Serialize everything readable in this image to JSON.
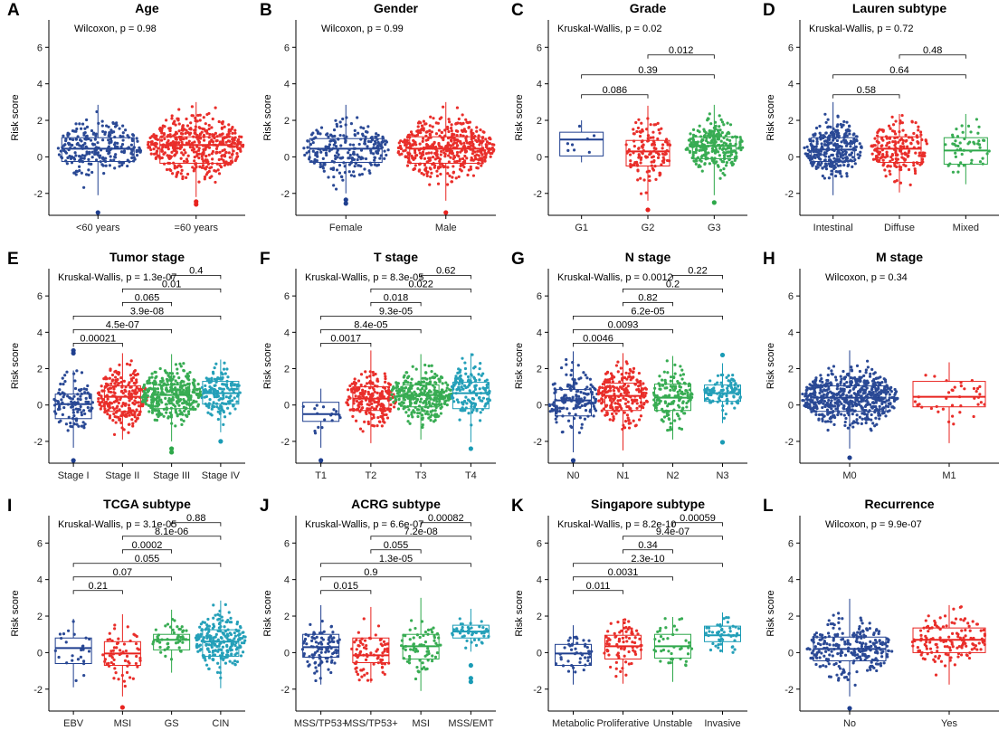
{
  "chart_data": [
    {
      "letter": "A",
      "type": "box",
      "title": "Age",
      "stat": "Wilcoxon, p = 0.98",
      "ylabel": "Risk score",
      "ylim": [
        -3.2,
        7.5
      ],
      "yticks": [
        -2,
        0,
        2,
        4,
        6
      ],
      "groups": [
        {
          "label": "<60 years",
          "color": "#1f3f8f",
          "q1": -0.25,
          "median": 0.45,
          "q3": 1.05,
          "whisker_low": -2.1,
          "whisker_high": 2.85,
          "outliers": [
            -3.05
          ],
          "n": 260
        },
        {
          "label": "=60 years",
          "color": "#e8231f",
          "q1": -0.35,
          "median": 0.65,
          "q3": 1.1,
          "whisker_low": -2.2,
          "whisker_high": 3.0,
          "outliers": [
            -2.45,
            -2.6
          ],
          "n": 460
        }
      ],
      "comparisons": []
    },
    {
      "letter": "B",
      "type": "box",
      "title": "Gender",
      "stat": "Wilcoxon, p = 0.99",
      "ylabel": "Risk score",
      "ylim": [
        -3.2,
        7.5
      ],
      "yticks": [
        -2,
        0,
        2,
        4,
        6
      ],
      "groups": [
        {
          "label": "Female",
          "color": "#1f3f8f",
          "q1": -0.3,
          "median": 0.45,
          "q3": 1.0,
          "whisker_low": -2.0,
          "whisker_high": 2.85,
          "outliers": [
            -2.35,
            -2.55
          ],
          "n": 230
        },
        {
          "label": "Male",
          "color": "#e8231f",
          "q1": -0.35,
          "median": 0.45,
          "q3": 1.1,
          "whisker_low": -2.4,
          "whisker_high": 3.0,
          "outliers": [
            -3.05
          ],
          "n": 470
        }
      ],
      "comparisons": []
    },
    {
      "letter": "C",
      "type": "box",
      "title": "Grade",
      "stat": "Kruskal-Wallis, p = 0.02",
      "ylabel": "Risk score",
      "ylim": [
        -3.2,
        7.5
      ],
      "yticks": [
        -2,
        0,
        2,
        4,
        6
      ],
      "groups": [
        {
          "label": "G1",
          "color": "#1f3f8f",
          "q1": 0.05,
          "median": 0.95,
          "q3": 1.35,
          "whisker_low": -0.3,
          "whisker_high": 2.0,
          "outliers": [],
          "n": 8
        },
        {
          "label": "G2",
          "color": "#e8231f",
          "q1": -0.5,
          "median": 0.3,
          "q3": 0.9,
          "whisker_low": -2.4,
          "whisker_high": 2.8,
          "outliers": [
            -2.9
          ],
          "n": 130
        },
        {
          "label": "G3",
          "color": "#2ea84a",
          "q1": -0.1,
          "median": 0.6,
          "q3": 1.1,
          "whisker_low": -2.1,
          "whisker_high": 2.85,
          "outliers": [
            -2.5
          ],
          "n": 260
        }
      ],
      "comparisons": [
        {
          "from": 0,
          "to": 1,
          "p": "0.086"
        },
        {
          "from": 0,
          "to": 2,
          "p": "0.39"
        },
        {
          "from": 1,
          "to": 2,
          "p": "0.012"
        }
      ]
    },
    {
      "letter": "D",
      "type": "box",
      "title": "Lauren subtype",
      "stat": "Kruskal-Wallis, p = 0.72",
      "ylabel": "Risk score",
      "ylim": [
        -3.2,
        7.5
      ],
      "yticks": [
        -2,
        0,
        2,
        4,
        6
      ],
      "groups": [
        {
          "label": "Intestinal",
          "color": "#1f3f8f",
          "q1": -0.25,
          "median": 0.4,
          "q3": 1.05,
          "whisker_low": -2.1,
          "whisker_high": 3.0,
          "outliers": [],
          "n": 300
        },
        {
          "label": "Diffuse",
          "color": "#e8231f",
          "q1": -0.3,
          "median": 0.45,
          "q3": 1.1,
          "whisker_low": -1.95,
          "whisker_high": 2.35,
          "outliers": [],
          "n": 200
        },
        {
          "label": "Mixed",
          "color": "#2ea84a",
          "q1": -0.4,
          "median": 0.35,
          "q3": 1.05,
          "whisker_low": -1.5,
          "whisker_high": 2.35,
          "outliers": [],
          "n": 50
        }
      ],
      "comparisons": [
        {
          "from": 0,
          "to": 1,
          "p": "0.58"
        },
        {
          "from": 0,
          "to": 2,
          "p": "0.64"
        },
        {
          "from": 1,
          "to": 2,
          "p": "0.48"
        }
      ]
    },
    {
      "letter": "E",
      "type": "box",
      "title": "Tumor stage",
      "stat": "Kruskal-Wallis, p = 1.3e-07",
      "ylabel": "Risk score",
      "ylim": [
        -3.2,
        7.5
      ],
      "yticks": [
        -2,
        0,
        2,
        4,
        6
      ],
      "groups": [
        {
          "label": "Stage I",
          "color": "#1f3f8f",
          "q1": -0.75,
          "median": 0.05,
          "q3": 0.6,
          "whisker_low": -2.35,
          "whisker_high": 1.9,
          "outliers": [
            3.0,
            2.85,
            -3.05
          ],
          "n": 110
        },
        {
          "label": "Stage II",
          "color": "#e8231f",
          "q1": -0.35,
          "median": 0.45,
          "q3": 1.05,
          "whisker_low": -1.9,
          "whisker_high": 2.85,
          "outliers": [],
          "n": 240
        },
        {
          "label": "Stage III",
          "color": "#2ea84a",
          "q1": -0.2,
          "median": 0.55,
          "q3": 1.1,
          "whisker_low": -2.0,
          "whisker_high": 2.8,
          "outliers": [
            -2.4,
            -2.6
          ],
          "n": 340
        },
        {
          "label": "Stage IV",
          "color": "#1a9bb5",
          "q1": 0.05,
          "median": 0.65,
          "q3": 1.3,
          "whisker_low": -1.5,
          "whisker_high": 2.5,
          "outliers": [
            -2.0
          ],
          "n": 150
        }
      ],
      "comparisons": [
        {
          "from": 0,
          "to": 1,
          "p": "0.00021"
        },
        {
          "from": 0,
          "to": 2,
          "p": "4.5e-07"
        },
        {
          "from": 0,
          "to": 3,
          "p": "3.9e-08"
        },
        {
          "from": 1,
          "to": 2,
          "p": "0.065"
        },
        {
          "from": 1,
          "to": 3,
          "p": "0.01"
        },
        {
          "from": 2,
          "to": 3,
          "p": "0.4"
        }
      ]
    },
    {
      "letter": "F",
      "type": "box",
      "title": "T stage",
      "stat": "Kruskal-Wallis, p = 8.3e-05",
      "ylabel": "Risk score",
      "ylim": [
        -3.2,
        7.5
      ],
      "yticks": [
        -2,
        0,
        2,
        4,
        6
      ],
      "groups": [
        {
          "label": "T1",
          "color": "#1f3f8f",
          "q1": -0.9,
          "median": -0.5,
          "q3": 0.15,
          "whisker_low": -2.35,
          "whisker_high": 0.9,
          "outliers": [
            -3.05
          ],
          "n": 18
        },
        {
          "label": "T2",
          "color": "#e8231f",
          "q1": -0.3,
          "median": 0.35,
          "q3": 1.0,
          "whisker_low": -2.1,
          "whisker_high": 3.0,
          "outliers": [],
          "n": 220
        },
        {
          "label": "T3",
          "color": "#2ea84a",
          "q1": -0.1,
          "median": 0.55,
          "q3": 1.1,
          "whisker_low": -1.9,
          "whisker_high": 2.8,
          "outliers": [],
          "n": 320
        },
        {
          "label": "T4",
          "color": "#1a9bb5",
          "q1": -0.2,
          "median": 0.65,
          "q3": 1.25,
          "whisker_low": -2.05,
          "whisker_high": 2.85,
          "outliers": [
            -2.4
          ],
          "n": 150
        }
      ],
      "comparisons": [
        {
          "from": 0,
          "to": 1,
          "p": "0.0017"
        },
        {
          "from": 0,
          "to": 2,
          "p": "8.4e-05"
        },
        {
          "from": 0,
          "to": 3,
          "p": "9.3e-05"
        },
        {
          "from": 1,
          "to": 2,
          "p": "0.018"
        },
        {
          "from": 1,
          "to": 3,
          "p": "0.022"
        },
        {
          "from": 2,
          "to": 3,
          "p": "0.62"
        }
      ]
    },
    {
      "letter": "G",
      "type": "box",
      "title": "N stage",
      "stat": "Kruskal-Wallis, p = 0.0012",
      "ylabel": "Risk score",
      "ylim": [
        -3.2,
        7.5
      ],
      "yticks": [
        -2,
        0,
        2,
        4,
        6
      ],
      "groups": [
        {
          "label": "N0",
          "color": "#1f3f8f",
          "q1": -0.6,
          "median": 0.25,
          "q3": 0.85,
          "whisker_low": -2.6,
          "whisker_high": 2.95,
          "outliers": [
            -3.05
          ],
          "n": 160
        },
        {
          "label": "N1",
          "color": "#e8231f",
          "q1": -0.3,
          "median": 0.5,
          "q3": 1.2,
          "whisker_low": -2.5,
          "whisker_high": 2.85,
          "outliers": [],
          "n": 220
        },
        {
          "label": "N2",
          "color": "#2ea84a",
          "q1": -0.3,
          "median": 0.4,
          "q3": 1.15,
          "whisker_low": -1.9,
          "whisker_high": 2.7,
          "outliers": [],
          "n": 150
        },
        {
          "label": "N3",
          "color": "#1a9bb5",
          "q1": 0.2,
          "median": 0.65,
          "q3": 1.1,
          "whisker_low": -1.0,
          "whisker_high": 2.3,
          "outliers": [
            -2.05,
            2.75
          ],
          "n": 100
        }
      ],
      "comparisons": [
        {
          "from": 0,
          "to": 1,
          "p": "0.0046"
        },
        {
          "from": 0,
          "to": 2,
          "p": "0.0093"
        },
        {
          "from": 0,
          "to": 3,
          "p": "6.2e-05"
        },
        {
          "from": 1,
          "to": 2,
          "p": "0.82"
        },
        {
          "from": 1,
          "to": 3,
          "p": "0.2"
        },
        {
          "from": 2,
          "to": 3,
          "p": "0.22"
        }
      ]
    },
    {
      "letter": "H",
      "type": "box",
      "title": "M stage",
      "stat": "Wilcoxon, p = 0.34",
      "ylabel": "Risk score",
      "ylim": [
        -3.2,
        7.5
      ],
      "yticks": [
        -2,
        0,
        2,
        4,
        6
      ],
      "groups": [
        {
          "label": "M0",
          "color": "#1f3f8f",
          "q1": -0.35,
          "median": 0.4,
          "q3": 1.05,
          "whisker_low": -2.4,
          "whisker_high": 3.0,
          "outliers": [
            -2.9
          ],
          "n": 600
        },
        {
          "label": "M1",
          "color": "#e8231f",
          "q1": -0.1,
          "median": 0.45,
          "q3": 1.3,
          "whisker_low": -2.1,
          "whisker_high": 2.35,
          "outliers": [],
          "n": 40
        }
      ],
      "comparisons": []
    },
    {
      "letter": "I",
      "type": "box",
      "title": "TCGA subtype",
      "stat": "Kruskal-Wallis, p = 3.1e-05",
      "ylabel": "Risk score",
      "ylim": [
        -3.2,
        7.5
      ],
      "yticks": [
        -2,
        0,
        2,
        4,
        6
      ],
      "groups": [
        {
          "label": "EBV",
          "color": "#1f3f8f",
          "q1": -0.6,
          "median": 0.25,
          "q3": 0.8,
          "whisker_low": -1.9,
          "whisker_high": 1.85,
          "outliers": [],
          "n": 25
        },
        {
          "label": "MSI",
          "color": "#e8231f",
          "q1": -0.7,
          "median": -0.05,
          "q3": 0.6,
          "whisker_low": -2.4,
          "whisker_high": 2.1,
          "outliers": [
            -3.0
          ],
          "n": 60
        },
        {
          "label": "GS",
          "color": "#2ea84a",
          "q1": 0.15,
          "median": 0.7,
          "q3": 1.0,
          "whisker_low": -1.1,
          "whisker_high": 2.35,
          "outliers": [],
          "n": 50
        },
        {
          "label": "CIN",
          "color": "#1a9bb5",
          "q1": -0.2,
          "median": 0.6,
          "q3": 1.25,
          "whisker_low": -1.95,
          "whisker_high": 2.85,
          "outliers": [],
          "n": 220
        }
      ],
      "comparisons": [
        {
          "from": 0,
          "to": 1,
          "p": "0.21"
        },
        {
          "from": 0,
          "to": 2,
          "p": "0.07"
        },
        {
          "from": 0,
          "to": 3,
          "p": "0.055"
        },
        {
          "from": 1,
          "to": 2,
          "p": "0.0002"
        },
        {
          "from": 1,
          "to": 3,
          "p": "8.1e-06"
        },
        {
          "from": 2,
          "to": 3,
          "p": "0.88"
        }
      ]
    },
    {
      "letter": "J",
      "type": "box",
      "title": "ACRG subtype",
      "stat": "Kruskal-Wallis, p = 6.6e-07",
      "ylabel": "Risk score",
      "ylim": [
        -3.2,
        7.5
      ],
      "yticks": [
        -2,
        0,
        2,
        4,
        6
      ],
      "groups": [
        {
          "label": "MSS/TP53−",
          "color": "#1f3f8f",
          "q1": -0.25,
          "median": 0.3,
          "q3": 1.0,
          "whisker_low": -1.75,
          "whisker_high": 2.6,
          "outliers": [],
          "n": 100
        },
        {
          "label": "MSS/TP53+",
          "color": "#e8231f",
          "q1": -0.55,
          "median": -0.15,
          "q3": 0.8,
          "whisker_low": -1.65,
          "whisker_high": 2.5,
          "outliers": [],
          "n": 80
        },
        {
          "label": "MSI",
          "color": "#2ea84a",
          "q1": -0.35,
          "median": 0.35,
          "q3": 1.0,
          "whisker_low": -2.1,
          "whisker_high": 3.0,
          "outliers": [],
          "n": 70
        },
        {
          "label": "MSS/EMT",
          "color": "#1a9bb5",
          "q1": 0.8,
          "median": 1.15,
          "q3": 1.5,
          "whisker_low": 0.05,
          "whisker_high": 2.4,
          "outliers": [
            -0.7,
            -1.4,
            -1.6
          ],
          "n": 45
        }
      ],
      "comparisons": [
        {
          "from": 0,
          "to": 1,
          "p": "0.015"
        },
        {
          "from": 0,
          "to": 2,
          "p": "0.9"
        },
        {
          "from": 0,
          "to": 3,
          "p": "1.3e-05"
        },
        {
          "from": 1,
          "to": 2,
          "p": "0.055"
        },
        {
          "from": 1,
          "to": 3,
          "p": "7.2e-08"
        },
        {
          "from": 2,
          "to": 3,
          "p": "0.00082"
        }
      ]
    },
    {
      "letter": "K",
      "type": "box",
      "title": "Singapore subtype",
      "stat": "Kruskal-Wallis, p = 8.2e-10",
      "ylabel": "Risk score",
      "ylim": [
        -3.2,
        7.5
      ],
      "yticks": [
        -2,
        0,
        2,
        4,
        6
      ],
      "groups": [
        {
          "label": "Metabolic",
          "color": "#1f3f8f",
          "q1": -0.7,
          "median": -0.05,
          "q3": 0.45,
          "whisker_low": -1.75,
          "whisker_high": 1.5,
          "outliers": [],
          "n": 45
        },
        {
          "label": "Proliferative",
          "color": "#e8231f",
          "q1": -0.35,
          "median": 0.35,
          "q3": 0.95,
          "whisker_low": -1.7,
          "whisker_high": 1.85,
          "outliers": [],
          "n": 80
        },
        {
          "label": "Unstable",
          "color": "#2ea84a",
          "q1": -0.3,
          "median": 0.35,
          "q3": 1.0,
          "whisker_low": -1.6,
          "whisker_high": 1.95,
          "outliers": [],
          "n": 40
        },
        {
          "label": "Invasive",
          "color": "#1a9bb5",
          "q1": 0.6,
          "median": 0.95,
          "q3": 1.45,
          "whisker_low": 0.0,
          "whisker_high": 2.2,
          "outliers": [],
          "n": 50
        }
      ],
      "comparisons": [
        {
          "from": 0,
          "to": 1,
          "p": "0.011"
        },
        {
          "from": 0,
          "to": 2,
          "p": "0.0031"
        },
        {
          "from": 0,
          "to": 3,
          "p": "2.3e-10"
        },
        {
          "from": 1,
          "to": 2,
          "p": "0.34"
        },
        {
          "from": 1,
          "to": 3,
          "p": "9.4e-07"
        },
        {
          "from": 2,
          "to": 3,
          "p": "0.00059"
        }
      ]
    },
    {
      "letter": "L",
      "type": "box",
      "title": "Recurrence",
      "stat": "Wilcoxon, p = 9.9e-07",
      "ylabel": "Risk score",
      "ylim": [
        -3.2,
        7.5
      ],
      "yticks": [
        -2,
        0,
        2,
        4,
        6
      ],
      "groups": [
        {
          "label": "No",
          "color": "#1f3f8f",
          "q1": -0.45,
          "median": 0.2,
          "q3": 0.85,
          "whisker_low": -2.4,
          "whisker_high": 2.95,
          "outliers": [
            -3.05
          ],
          "n": 260
        },
        {
          "label": "Yes",
          "color": "#e8231f",
          "q1": 0.0,
          "median": 0.7,
          "q3": 1.35,
          "whisker_low": -1.75,
          "whisker_high": 2.6,
          "outliers": [],
          "n": 140
        }
      ],
      "comparisons": []
    }
  ]
}
